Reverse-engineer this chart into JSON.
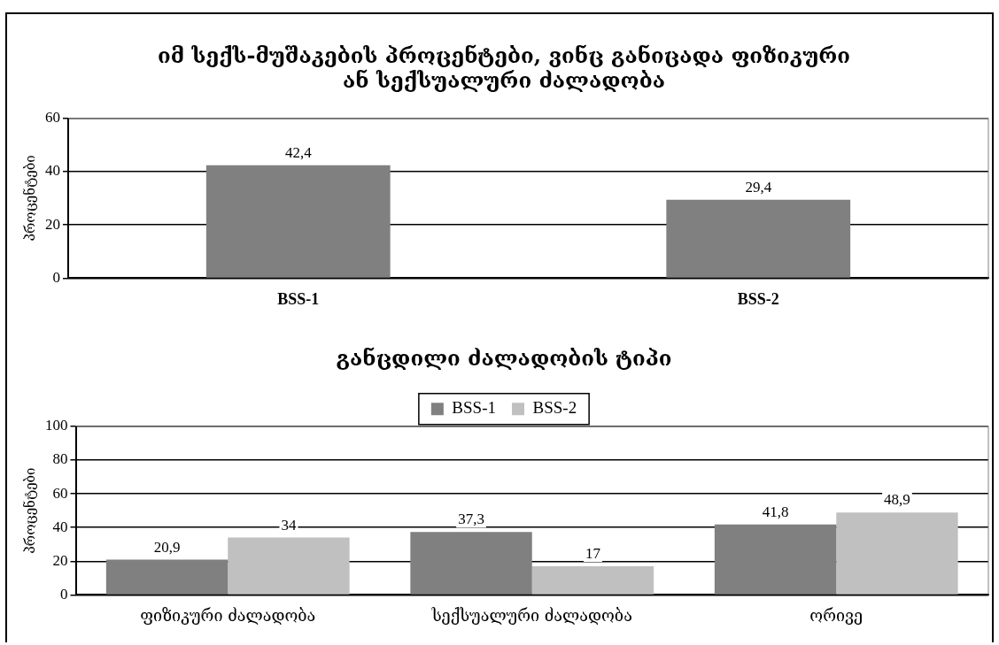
{
  "chart_data": [
    {
      "type": "bar",
      "title": "იმ სექს-მუშაკების პროცენტები, ვინც განიცადა ფიზიკური\nან სექსუალური ძალადობა",
      "ylabel": "პროცენტები",
      "categories": [
        "BSS-1",
        "BSS-2"
      ],
      "values": [
        42.4,
        29.4
      ],
      "value_labels": [
        "42,4",
        "29,4"
      ],
      "color": "#808080",
      "ylim": [
        0,
        60
      ],
      "yticks": [
        0,
        20,
        40,
        60
      ],
      "grid": "y",
      "legend": false
    },
    {
      "type": "bar",
      "title": "განცდილი ძალადობის ტიპი",
      "ylabel": "პროცენტები",
      "categories": [
        "ფიზიკური ძალადობა",
        "სექსუალური ძალადობა",
        "ორივე"
      ],
      "series": [
        {
          "name": "BSS-1",
          "color": "#808080",
          "values": [
            20.9,
            37.3,
            41.8
          ],
          "value_labels": [
            "20,9",
            "37,3",
            "41,8"
          ]
        },
        {
          "name": "BSS-2",
          "color": "#c0c0c0",
          "values": [
            34,
            17,
            48.9
          ],
          "value_labels": [
            "34",
            "17",
            "48,9"
          ]
        }
      ],
      "ylim": [
        0,
        100
      ],
      "yticks": [
        0,
        20,
        40,
        60,
        80,
        100
      ],
      "grid": "y",
      "legend": "top"
    }
  ]
}
